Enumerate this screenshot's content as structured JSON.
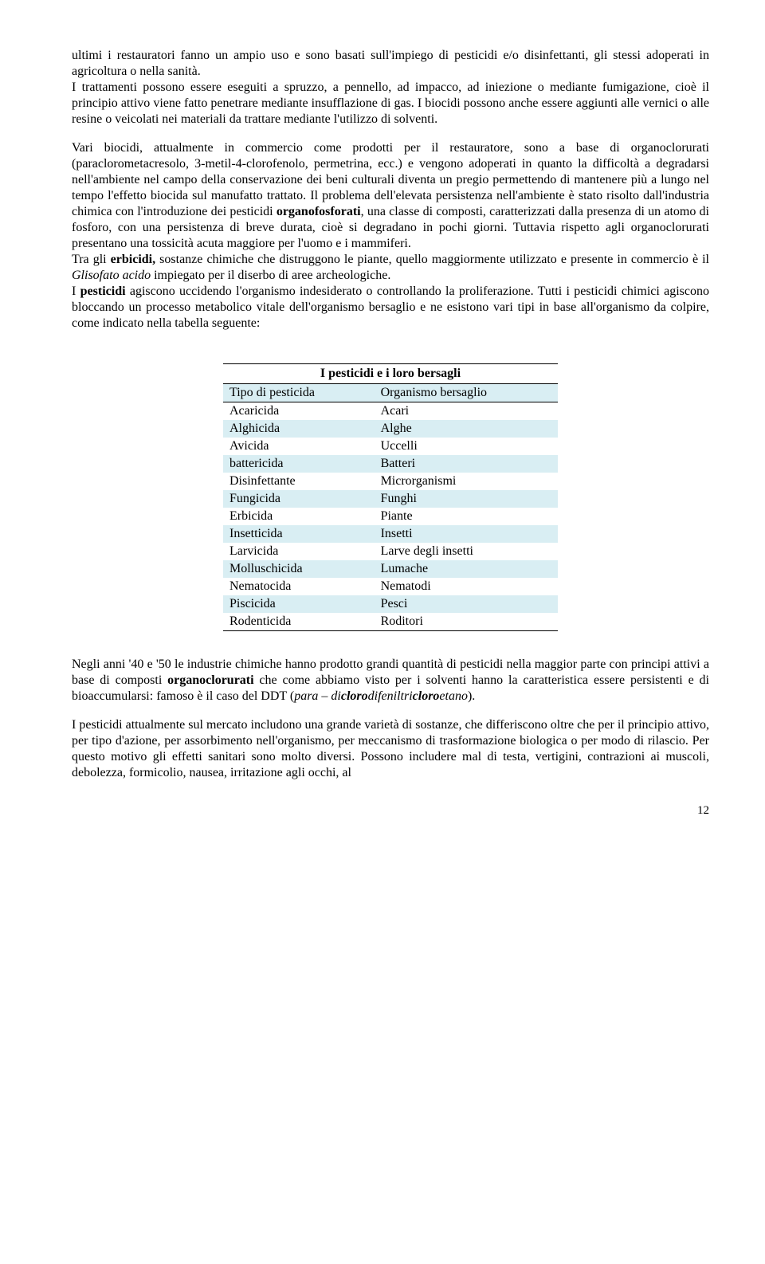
{
  "para1": "ultimi i restauratori fanno un ampio uso e sono basati sull'impiego di pesticidi e/o disinfettanti, gli stessi adoperati in agricoltura o nella sanità.",
  "para2a": "I trattamenti possono essere eseguiti a spruzzo, a pennello, ad impacco, ad iniezione  o mediante fumigazione, cioè il principio attivo viene fatto penetrare mediante insufflazione di gas. I biocidi possono anche essere aggiunti alle vernici o alle resine o veicolati nei materiali da trattare mediante l'utilizzo di solventi.",
  "para3a": "Vari biocidi, attualmente in commercio come prodotti per il restauratore, sono a base di organoclorurati (paraclorometacresolo, 3-metil-4-clorofenolo, permetrina, ecc.) e vengono adoperati in quanto la difficoltà a degradarsi nell'ambiente nel campo della conservazione dei beni culturali diventa un pregio permettendo di mantenere più a lungo nel tempo l'effetto biocida sul manufatto trattato. Il problema dell'elevata persistenza nell'ambiente è stato risolto dall'industria chimica con l'introduzione dei pesticidi ",
  "para3b": "organofosforati",
  "para3c": ", una classe di composti, caratterizzati dalla presenza di un atomo di fosforo, con una persistenza di breve durata, cioè si degradano in pochi giorni. Tuttavia rispetto agli organoclorurati presentano una tossicità acuta maggiore per l'uomo e i mammiferi.",
  "para4a": "Tra gli ",
  "para4b": "erbicidi,",
  "para4c": " sostanze chimiche che distruggono le piante, quello maggiormente utilizzato e presente in commercio è il ",
  "para4d": "Glisofato acido",
  "para4e": " impiegato per il diserbo di aree archeologiche.",
  "para5a": "I ",
  "para5b": "pesticidi",
  "para5c": " agiscono uccidendo l'organismo indesiderato o controllando la proliferazione. Tutti i pesticidi chimici agiscono bloccando un processo metabolico vitale dell'organismo bersaglio e ne esistono vari tipi in base all'organismo da colpire, come indicato nella tabella seguente:",
  "table": {
    "title": "I pesticidi e i loro bersagli",
    "h1": "Tipo di pesticida",
    "h2": "Organismo bersaglio",
    "rows": [
      {
        "a": "Acaricida",
        "b": "Acari",
        "s": true
      },
      {
        "a": "Alghicida",
        "b": "Alghe",
        "s": false
      },
      {
        "a": "Avicida",
        "b": "Uccelli",
        "s": true
      },
      {
        "a": "battericida",
        "b": "Batteri",
        "s": false
      },
      {
        "a": "Disinfettante",
        "b": "Microrganismi",
        "s": true
      },
      {
        "a": "Fungicida",
        "b": "Funghi",
        "s": false
      },
      {
        "a": "Erbicida",
        "b": "Piante",
        "s": true
      },
      {
        "a": "Insetticida",
        "b": "Insetti",
        "s": false
      },
      {
        "a": "Larvicida",
        "b": "Larve degli insetti",
        "s": true
      },
      {
        "a": "Molluschicida",
        "b": "Lumache",
        "s": false
      },
      {
        "a": "Nematocida",
        "b": "Nematodi",
        "s": true
      },
      {
        "a": "Piscicida",
        "b": "Pesci",
        "s": false
      },
      {
        "a": "Rodenticida",
        "b": "Roditori",
        "s": true
      }
    ]
  },
  "para6a": "Negli anni '40 e '50 le industrie chimiche hanno prodotto grandi quantità di pesticidi nella maggior parte con principi attivi a base di composti ",
  "para6b": "organoclorurati",
  "para6c": " che come abbiamo visto per i solventi hanno la caratteristica essere persistenti e di bioaccumularsi: famoso è il caso del DDT (",
  "para6d": "para – di",
  "para6e": "cloro",
  "para6f": "difeniltri",
  "para6g": "cloro",
  "para6h": "etano",
  "para6i": ").",
  "para7": "I pesticidi attualmente sul mercato includono una grande varietà di sostanze, che differiscono oltre che per il principio attivo, per tipo d'azione, per assorbimento nell'organismo, per meccanismo di trasformazione biologica o per modo di rilascio. Per questo motivo gli effetti sanitari sono molto diversi. Possono includere mal di testa, vertigini, contrazioni ai muscoli, debolezza, formicolio, nausea, irritazione agli occhi, al",
  "pagenum": "12"
}
